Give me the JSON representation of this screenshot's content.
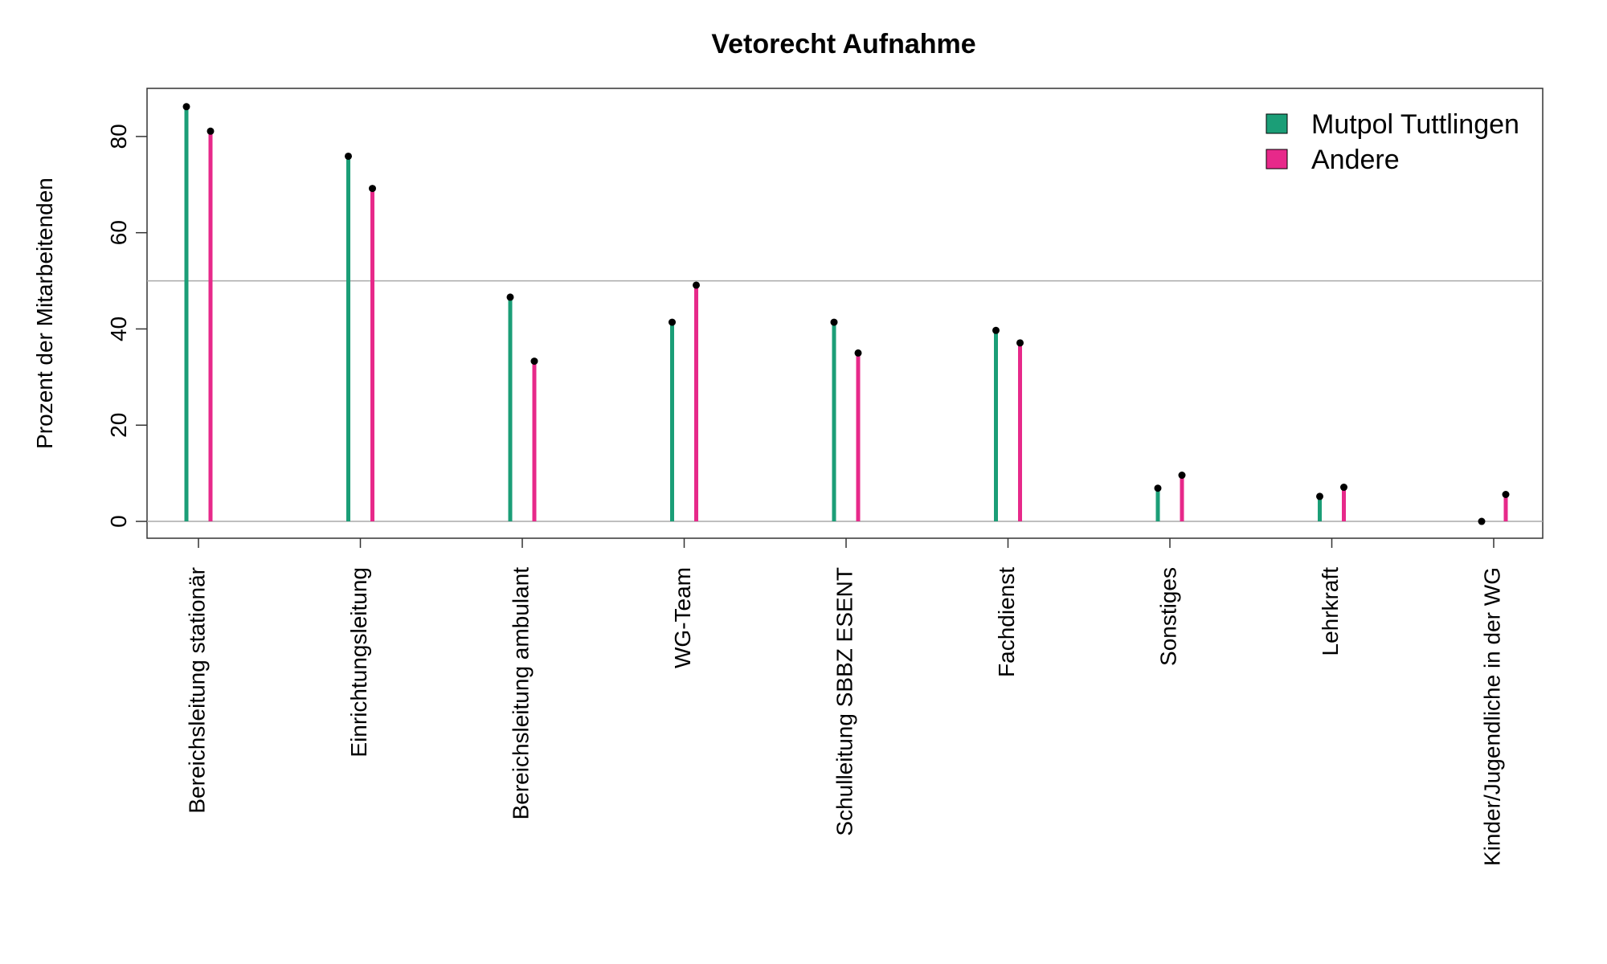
{
  "chart_data": {
    "type": "lollipop",
    "title": "Vetorecht Aufnahme",
    "ylabel": "Prozent der Mitarbeitenden",
    "xlabel": "",
    "ylim": [
      -3.5,
      90
    ],
    "yticks": [
      0,
      20,
      40,
      60,
      80
    ],
    "reference_lines": [
      0,
      50
    ],
    "grid": false,
    "legend_position": "top-right",
    "categories": [
      "Bereichsleitung stationär",
      "Einrichtungsleitung",
      "Bereichsleitung ambulant",
      "WG-Team",
      "Schulleitung SBBZ ESENT",
      "Fachdienst",
      "Sonstiges",
      "Lehrkraft",
      "Kinder/Jugendliche in der WG"
    ],
    "series": [
      {
        "name": "Mutpol Tuttlingen",
        "color": "#1b9e77",
        "values": [
          86.2,
          75.9,
          46.6,
          41.4,
          41.4,
          39.7,
          6.9,
          5.2,
          0.0
        ]
      },
      {
        "name": "Andere",
        "color": "#e7298a",
        "values": [
          81.1,
          69.2,
          33.3,
          49.1,
          35.0,
          37.1,
          9.6,
          7.1,
          5.6
        ]
      }
    ]
  }
}
